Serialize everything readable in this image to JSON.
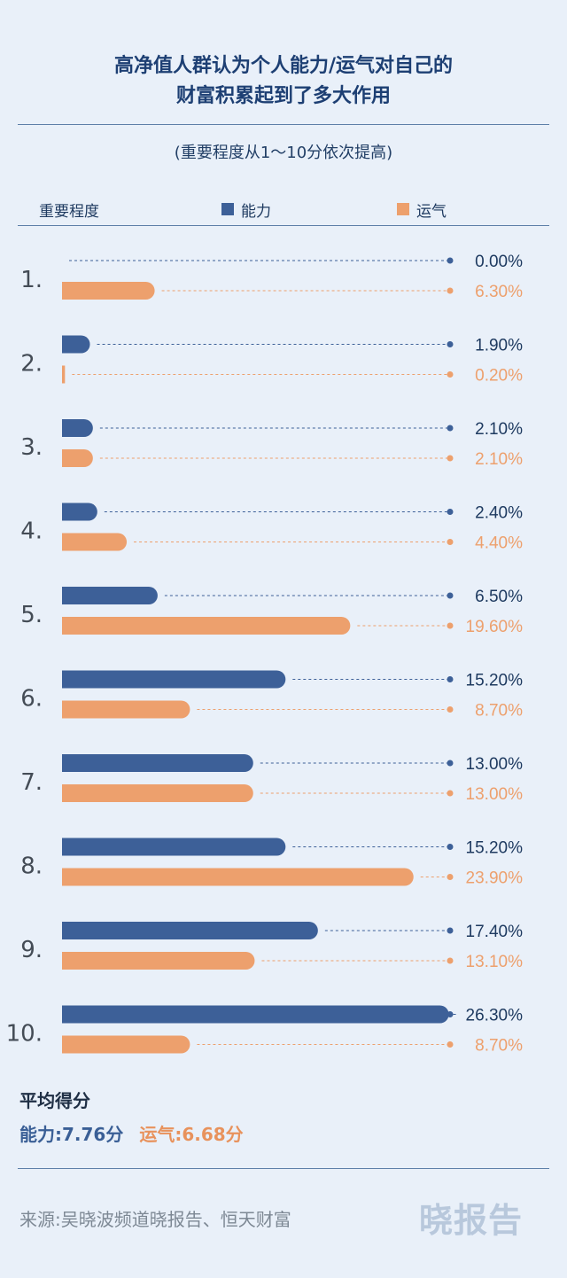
{
  "header": {
    "title_line1": "高净值人群认为个人能力/运气对自己的",
    "title_line2": "财富积累起到了多大作用",
    "subtitle": "(重要程度从1～10分依次提高)"
  },
  "legend": {
    "row_label": "重要程度",
    "ability": "能力",
    "luck": "运气"
  },
  "colors": {
    "ability": "#3d6098",
    "luck": "#eda06d",
    "background": "#e9f0f9",
    "title": "#1d3f73"
  },
  "chart_data": {
    "type": "bar",
    "orientation": "horizontal",
    "categories": [
      "1.",
      "2.",
      "3.",
      "4.",
      "5.",
      "6.",
      "7.",
      "8.",
      "9.",
      "10."
    ],
    "series": [
      {
        "name": "能力",
        "values": [
          0.0,
          1.9,
          2.1,
          2.4,
          6.5,
          15.2,
          13.0,
          15.2,
          17.4,
          26.3
        ],
        "labels": [
          "0.00%",
          "1.90%",
          "2.10%",
          "2.40%",
          "6.50%",
          "15.20%",
          "13.00%",
          "15.20%",
          "17.40%",
          "26.30%"
        ]
      },
      {
        "name": "运气",
        "values": [
          6.3,
          0.2,
          2.1,
          4.4,
          19.6,
          8.7,
          13.0,
          23.9,
          13.1,
          8.7
        ],
        "labels": [
          "6.30%",
          "0.20%",
          "2.10%",
          "4.40%",
          "19.60%",
          "8.70%",
          "13.00%",
          "23.90%",
          "13.10%",
          "8.70%"
        ]
      }
    ],
    "unit": "%"
  },
  "summary": {
    "heading": "平均得分",
    "ability": "能力:7.76分",
    "luck": "运气:6.68分"
  },
  "footer": {
    "source": "来源:吴晓波频道晓报告、恒天财富",
    "brand": "晓报告"
  }
}
